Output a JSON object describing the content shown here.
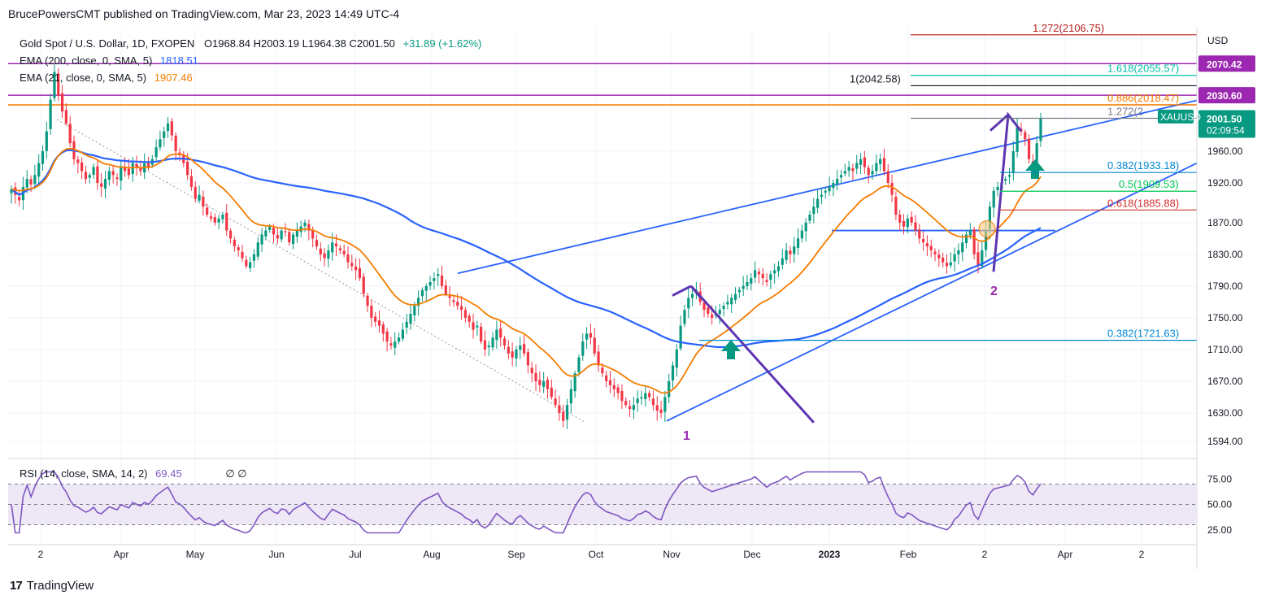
{
  "header": {
    "published": "BrucePowersCMT published on TradingView.com, Mar 23, 2023 14:49 UTC-4"
  },
  "legend": {
    "symbol": "Gold Spot / U.S. Dollar, 1D, FXOPEN",
    "ohlc": "O1968.84  H2003.19  L1964.38  C2001.50",
    "change": "+31.89 (+1.62%)",
    "ema200_label": "EMA (200, close, 0, SMA, 5)",
    "ema200_value": "1818.51",
    "ema21_label": "EMA (21, close, 0, SMA, 5)",
    "ema21_value": "1907.46",
    "rsi_label": "RSI (14, close, SMA, 14, 2)",
    "rsi_value": "69.45",
    "rsi_extra": "∅  ∅"
  },
  "brand": {
    "name": "TradingView"
  },
  "colors": {
    "up": "#089981",
    "down": "#f23645",
    "ema200": "#2962ff",
    "ema21": "#f57c00",
    "fib_purple": "#9c27b0",
    "trend": "#2962ff",
    "accent_green": "#089981",
    "rsi_line": "#7e57c2",
    "rsi_band": "#ede7f6"
  },
  "chart_data": {
    "type": "candlestick",
    "title": "Gold Spot / U.S. Dollar, 1D, FXOPEN",
    "currency": "USD",
    "y_axis_ticks": [
      1594.0,
      1630.0,
      1670.0,
      1710.0,
      1750.0,
      1790.0,
      1830.0,
      1870.0,
      1920.0,
      1960.0
    ],
    "x_axis_labels": [
      "2",
      "Apr",
      "May",
      "Jun",
      "Jul",
      "Aug",
      "Sep",
      "Oct",
      "Nov",
      "Dec",
      "2023",
      "Feb",
      "2",
      "Apr",
      "2"
    ],
    "price_badges": [
      {
        "label": "2070.42",
        "value": 2070.42,
        "color": "#9c27b0"
      },
      {
        "label": "2030.60",
        "value": 2030.6,
        "color": "#9c27b0"
      },
      {
        "label": "2001.50",
        "sub": "02:09:54",
        "value": 2001.5,
        "color": "#089981"
      },
      {
        "label": "XAUUSD",
        "value": 1998,
        "color": "#089981"
      }
    ],
    "fib_levels": [
      {
        "label": "1.272(2106.75)",
        "value": 2106.75,
        "color": "#b71c1c"
      },
      {
        "label": "1.618(2055.57)",
        "value": 2055.57,
        "color": "#00bfa5"
      },
      {
        "label": "1(2042.58)",
        "value": 2042.58,
        "color": "#131722"
      },
      {
        "label": "0.886(2018.47)",
        "value": 2018.47,
        "color": "#f57c00"
      },
      {
        "label": "1.272(2",
        "value": 2001.5,
        "color": "#787b86"
      },
      {
        "label": "0.382(1933.18)",
        "value": 1933.18,
        "color": "#0288d1"
      },
      {
        "label": "0.5(1909.53)",
        "value": 1909.53,
        "color": "#00c853"
      },
      {
        "label": "0.618(1885.88)",
        "value": 1885.88,
        "color": "#d32f2f"
      },
      {
        "label": "0.382(1721.63)",
        "value": 1721.63,
        "color": "#0288d1"
      }
    ],
    "horizontal_lines": [
      {
        "value": 2070.42,
        "color": "#9c27b0"
      },
      {
        "value": 2030.6,
        "color": "#9c27b0"
      },
      {
        "value": 2018.47,
        "color": "#f57c00"
      }
    ],
    "wave_labels": [
      {
        "label": "1",
        "date_index": 205,
        "price": 1598
      },
      {
        "label": "2",
        "date_index": 300,
        "price": 1786
      }
    ],
    "ohlc_close_series": [
      1912,
      1905,
      1898,
      1915,
      1925,
      1918,
      1930,
      1945,
      1960,
      1985,
      2025,
      2060,
      2030,
      2010,
      1995,
      1970,
      1950,
      1945,
      1935,
      1925,
      1930,
      1940,
      1920,
      1915,
      1925,
      1935,
      1930,
      1925,
      1940,
      1935,
      1930,
      1945,
      1940,
      1935,
      1945,
      1940,
      1950,
      1965,
      1975,
      1985,
      1995,
      1980,
      1960,
      1955,
      1945,
      1930,
      1915,
      1900,
      1905,
      1890,
      1880,
      1875,
      1870,
      1875,
      1880,
      1860,
      1850,
      1840,
      1835,
      1825,
      1815,
      1820,
      1830,
      1845,
      1855,
      1860,
      1865,
      1855,
      1850,
      1860,
      1858,
      1845,
      1855,
      1860,
      1865,
      1870,
      1860,
      1850,
      1840,
      1830,
      1825,
      1835,
      1845,
      1840,
      1835,
      1830,
      1820,
      1815,
      1810,
      1800,
      1780,
      1765,
      1750,
      1745,
      1740,
      1730,
      1720,
      1715,
      1720,
      1725,
      1735,
      1745,
      1755,
      1765,
      1775,
      1785,
      1790,
      1795,
      1800,
      1805,
      1790,
      1780,
      1775,
      1770,
      1765,
      1760,
      1750,
      1745,
      1735,
      1740,
      1720,
      1710,
      1715,
      1725,
      1735,
      1725,
      1715,
      1705,
      1700,
      1710,
      1715,
      1705,
      1690,
      1680,
      1670,
      1665,
      1670,
      1660,
      1650,
      1640,
      1630,
      1620,
      1640,
      1660,
      1680,
      1700,
      1720,
      1730,
      1725,
      1705,
      1690,
      1680,
      1670,
      1665,
      1660,
      1655,
      1645,
      1640,
      1635,
      1640,
      1648,
      1650,
      1655,
      1650,
      1640,
      1633,
      1630,
      1650,
      1670,
      1690,
      1710,
      1740,
      1760,
      1775,
      1780,
      1785,
      1770,
      1760,
      1755,
      1750,
      1755,
      1760,
      1765,
      1770,
      1775,
      1780,
      1785,
      1790,
      1795,
      1800,
      1810,
      1805,
      1800,
      1795,
      1805,
      1810,
      1815,
      1825,
      1835,
      1830,
      1840,
      1850,
      1860,
      1870,
      1880,
      1890,
      1900,
      1905,
      1910,
      1915,
      1920,
      1925,
      1930,
      1935,
      1940,
      1935,
      1945,
      1950,
      1940,
      1930,
      1935,
      1945,
      1950,
      1935,
      1920,
      1905,
      1880,
      1870,
      1865,
      1875,
      1870,
      1860,
      1850,
      1845,
      1840,
      1835,
      1830,
      1825,
      1820,
      1815,
      1820,
      1830,
      1835,
      1845,
      1855,
      1860,
      1830,
      1815,
      1835,
      1860,
      1890,
      1910,
      1915,
      1920,
      1925,
      1930,
      1960,
      1990,
      1985,
      1975,
      1950,
      1940,
      1970,
      2001.5
    ],
    "rsi": {
      "ylim": [
        0,
        100
      ],
      "ticks": [
        25.0,
        50.0,
        75.0
      ],
      "band": [
        30,
        70
      ]
    }
  }
}
